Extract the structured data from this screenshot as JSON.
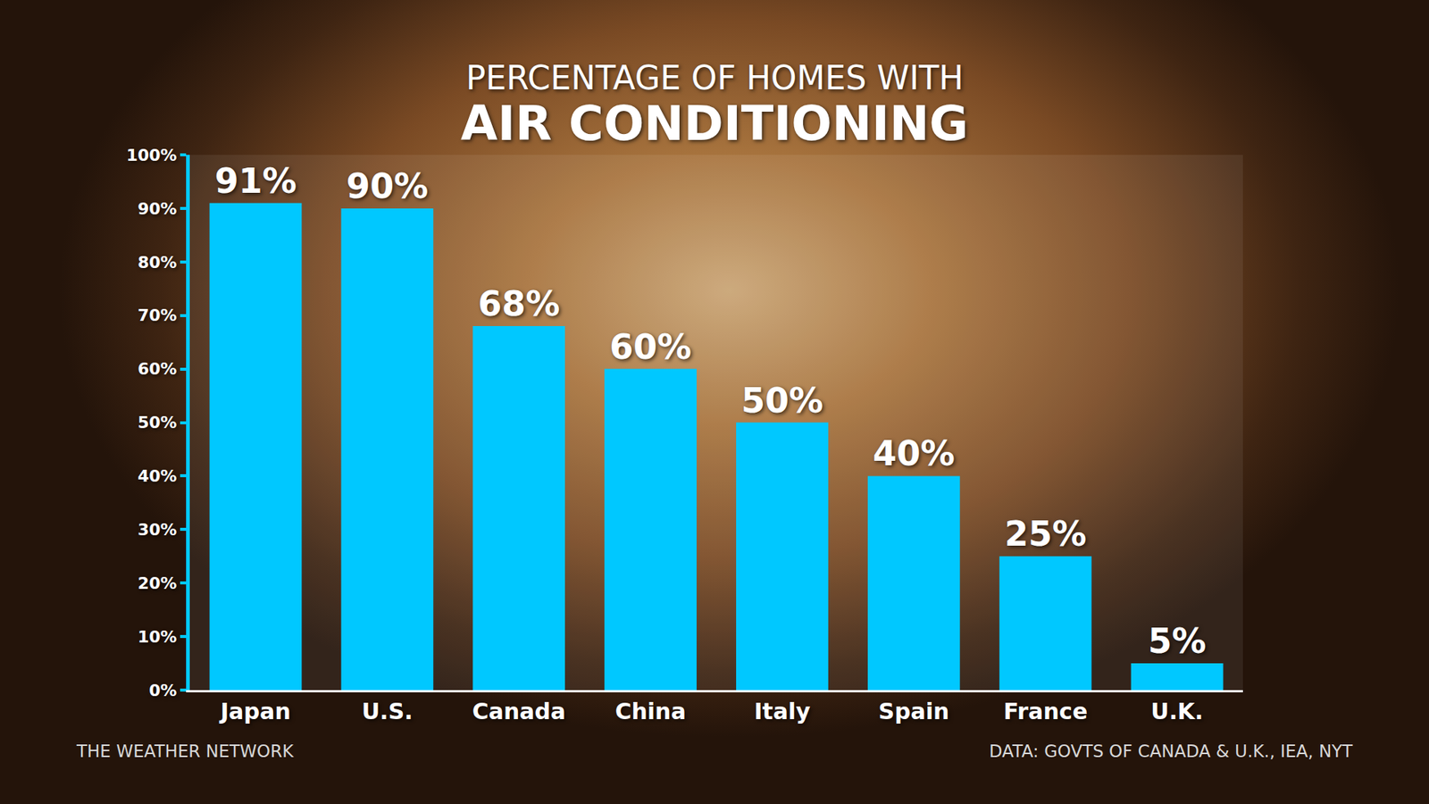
{
  "chart_data": {
    "type": "bar",
    "title": "PERCENTAGE OF HOMES WITH",
    "subtitle": "AIR CONDITIONING",
    "categories": [
      "Japan",
      "U.S.",
      "Canada",
      "China",
      "Italy",
      "Spain",
      "France",
      "U.K."
    ],
    "values": [
      91,
      90,
      68,
      60,
      50,
      40,
      25,
      5
    ],
    "value_labels": [
      "91%",
      "90%",
      "68%",
      "60%",
      "50%",
      "40%",
      "25%",
      "5%"
    ],
    "color": "#00c8ff",
    "ylim": [
      0,
      100
    ],
    "yticks": [
      {
        "value": 0,
        "label": "0%"
      },
      {
        "value": 10,
        "label": "10%"
      },
      {
        "value": 20,
        "label": "20%"
      },
      {
        "value": 30,
        "label": "30%"
      },
      {
        "value": 40,
        "label": "40%"
      },
      {
        "value": 50,
        "label": "50%"
      },
      {
        "value": 60,
        "label": "60%"
      },
      {
        "value": 70,
        "label": "70%"
      },
      {
        "value": 80,
        "label": "80%"
      },
      {
        "value": 90,
        "label": "90%"
      },
      {
        "value": 100,
        "label": "100%"
      }
    ],
    "grid": false,
    "data_labels": true,
    "annotations": [
      "THE WEATHER NETWORK",
      "DATA: GOVTS OF CANADA & U.K., IEA, NYT"
    ]
  }
}
